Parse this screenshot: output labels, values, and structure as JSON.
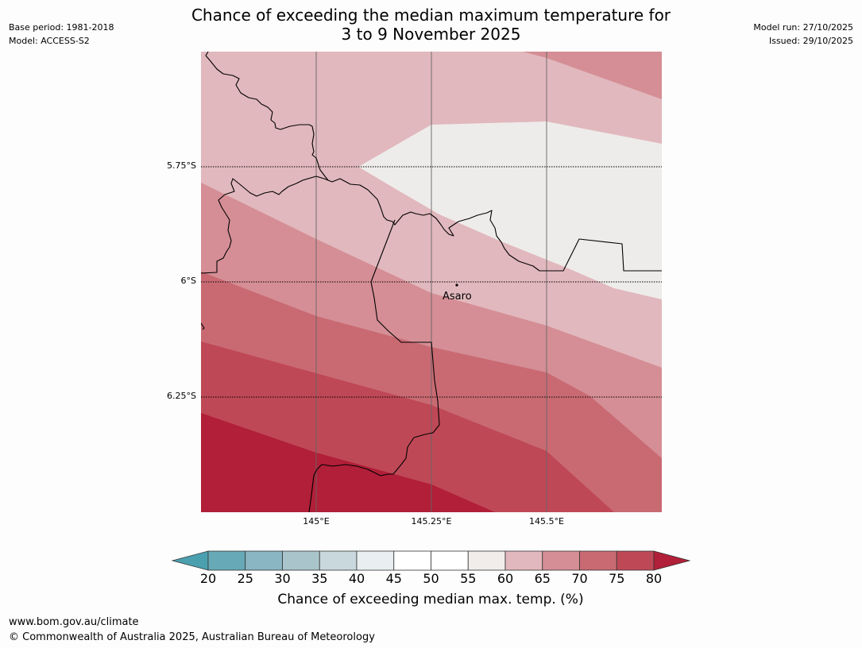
{
  "title": {
    "line1": "Chance of exceeding the median maximum temperature for",
    "line2": "3 to 9 November 2025"
  },
  "meta_left": {
    "base_period": "Base period: 1981-2018",
    "model": "Model: ACCESS-S2"
  },
  "meta_right": {
    "model_run": "Model run: 27/10/2025",
    "issued": "Issued: 29/10/2025"
  },
  "map": {
    "lat_labels": [
      "5.75°S",
      "6°S",
      "6.25°S"
    ],
    "lon_labels": [
      "145°E",
      "145.25°E",
      "145.5°E"
    ],
    "place": "Asaro",
    "zone_colors": {
      "p55_60": "#eeecea",
      "p60_65": "#e1b8bd",
      "p65_70": "#d58e95",
      "p70_75": "#c96a73",
      "p75_80": "#bf4856",
      "p80_plus": "#b11f38"
    }
  },
  "legend": {
    "title": "Chance of exceeding median max. temp. (%)",
    "ticks": [
      "20",
      "25",
      "30",
      "35",
      "40",
      "45",
      "50",
      "55",
      "60",
      "65",
      "70",
      "75",
      "80"
    ],
    "colors": [
      "#67a9b6",
      "#8ab5c2",
      "#a9c5cb",
      "#c9d8dc",
      "#e9eff1",
      "#ffffff",
      "#ffffff",
      "#f0edeb",
      "#e1b8bd",
      "#d58e95",
      "#c96a73",
      "#bf4856"
    ],
    "low_arrow_color": "#4ba0b0",
    "high_arrow_color": "#b11f38"
  },
  "footer": {
    "url": "www.bom.gov.au/climate",
    "copyright": "© Commonwealth of Australia 2025, Australian Bureau of Meteorology"
  }
}
